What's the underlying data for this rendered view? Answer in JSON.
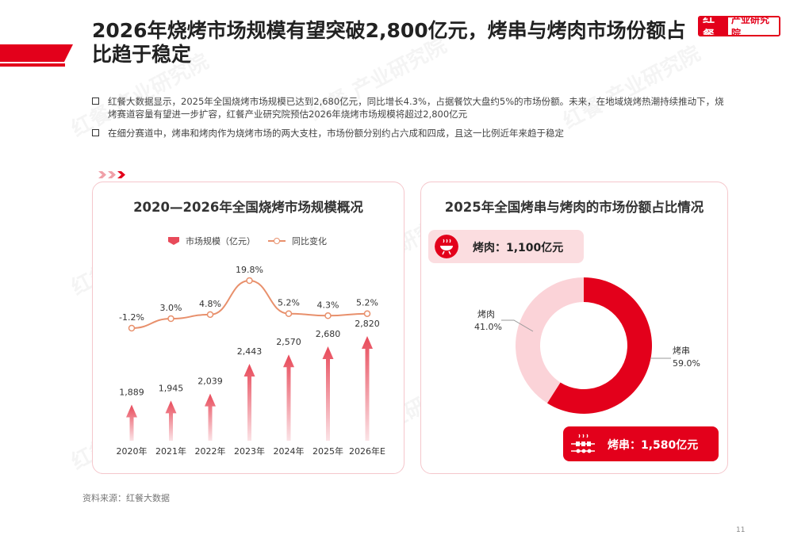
{
  "header": {
    "title": "2026年烧烤市场规模有望突破2,800亿元，烤串与烤肉市场份额占比趋于稳定",
    "logo_left": "红餐",
    "logo_right": "产业研究院"
  },
  "bullets": [
    "红餐大数据显示，2025年全国烧烤市场规模已达到2,680亿元，同比增长4.3%，占据餐饮大盘约5%的市场份额。未来，在地域烧烤热潮持续推动下，烧烤赛道容量有望进一步扩容，红餐产业研究院预估2026年烧烤市场规模将超过2,800亿元",
    "在细分赛道中，烤串和烤肉作为烧烤市场的两大支柱，市场份额分别约占六成和四成，且这一比例近年来趋于稳定"
  ],
  "watermark": "红餐 产业研究院",
  "colors": {
    "accent": "#e3001b",
    "bar": "#e84a5a",
    "line": "#e8906c",
    "donut_light": "#fbd3d8"
  },
  "chart_data": [
    {
      "type": "bar",
      "title": "2020—2026年全国烧烤市场规模概况",
      "categories": [
        "2020年",
        "2021年",
        "2022年",
        "2023年",
        "2024年",
        "2025年",
        "2026年E"
      ],
      "series": [
        {
          "name": "市场规模（亿元）",
          "values": [
            1889,
            1945,
            2039,
            2443,
            2570,
            2680,
            2820
          ],
          "labels": [
            "1,889",
            "1,945",
            "2,039",
            "2,443",
            "2,570",
            "2,680",
            "2,820"
          ]
        },
        {
          "name": "同比变化",
          "type": "line",
          "values": [
            -1.2,
            3.0,
            4.8,
            19.8,
            5.2,
            4.3,
            5.2
          ],
          "labels": [
            "-1.2%",
            "3.0%",
            "4.8%",
            "19.8%",
            "5.2%",
            "4.3%",
            "5.2%"
          ]
        }
      ],
      "legend": "top"
    },
    {
      "type": "pie",
      "title": "2025年全国烤串与烤肉的市场份额占比情况",
      "labels": [
        "烤串",
        "烤肉"
      ],
      "values": [
        59.0,
        41.0
      ],
      "value_labels": [
        "59.0%",
        "41.0%"
      ],
      "colors": [
        "#e3001b",
        "#fbd3d8"
      ],
      "callouts": {
        "meat": "烤肉：1,100亿元",
        "skewer": "烤串：1,580亿元"
      }
    }
  ],
  "footer": {
    "source": "资料来源：红餐大数据",
    "page": "11"
  }
}
